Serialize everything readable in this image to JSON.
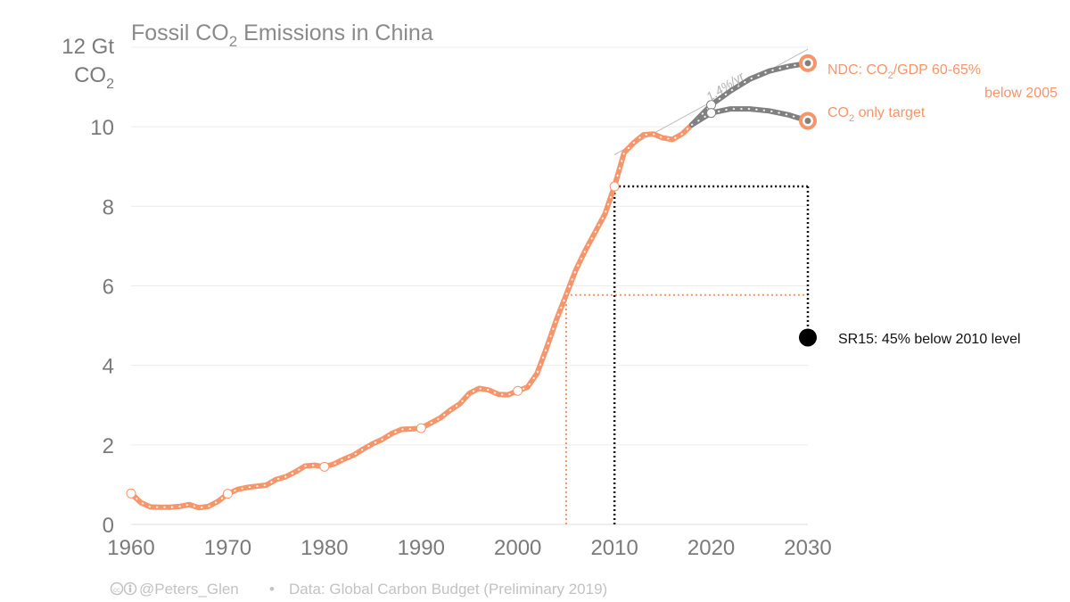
{
  "chart_data": {
    "type": "line",
    "title": "Fossil CO2 Emissions in China",
    "title_parts": {
      "pre": "Fossil CO",
      "sub": "2",
      "post": " Emissions in China"
    },
    "y_unit_line1": "12 Gt",
    "y_unit_line2": {
      "pre": "CO",
      "sub": "2"
    },
    "xlim": [
      1960,
      2030
    ],
    "ylim": [
      0,
      12
    ],
    "x_ticks": [
      1960,
      1970,
      1980,
      1990,
      2000,
      2010,
      2020,
      2030
    ],
    "y_ticks": [
      0,
      2,
      4,
      6,
      8,
      10
    ],
    "grid": true,
    "colors": {
      "historical": "#f7956a",
      "projection": "#808080",
      "sr15": "#000000",
      "text": "#7a7a7a"
    },
    "series": [
      {
        "role": "historical",
        "x": [
          1960,
          1961,
          1962,
          1963,
          1964,
          1965,
          1966,
          1967,
          1968,
          1969,
          1970,
          1971,
          1972,
          1973,
          1974,
          1975,
          1976,
          1977,
          1978,
          1979,
          1980,
          1981,
          1982,
          1983,
          1984,
          1985,
          1986,
          1987,
          1988,
          1989,
          1990,
          1991,
          1992,
          1993,
          1994,
          1995,
          1996,
          1997,
          1998,
          1999,
          2000,
          2001,
          2002,
          2003,
          2004,
          2005,
          2006,
          2007,
          2008,
          2009,
          2010,
          2011,
          2012,
          2013,
          2014,
          2015,
          2016,
          2017,
          2018
        ],
        "y": [
          0.78,
          0.55,
          0.44,
          0.43,
          0.43,
          0.45,
          0.5,
          0.42,
          0.45,
          0.58,
          0.77,
          0.88,
          0.93,
          0.96,
          0.99,
          1.13,
          1.2,
          1.32,
          1.47,
          1.49,
          1.45,
          1.52,
          1.64,
          1.74,
          1.89,
          2.03,
          2.14,
          2.29,
          2.39,
          2.4,
          2.42,
          2.55,
          2.68,
          2.87,
          3.03,
          3.3,
          3.42,
          3.38,
          3.27,
          3.26,
          3.36,
          3.45,
          3.8,
          4.45,
          5.15,
          5.77,
          6.4,
          6.9,
          7.35,
          7.8,
          8.5,
          9.35,
          9.6,
          9.8,
          9.82,
          9.72,
          9.68,
          9.82,
          10.05
        ]
      },
      {
        "role": "projection",
        "name": "NDC: CO2/GDP 60-65% below 2005",
        "x": [
          2018,
          2020,
          2022,
          2024,
          2026,
          2028,
          2030
        ],
        "y": [
          10.05,
          10.55,
          10.9,
          11.2,
          11.4,
          11.52,
          11.6
        ]
      },
      {
        "role": "projection",
        "name": "CO2 only target",
        "x": [
          2018,
          2020,
          2022,
          2024,
          2026,
          2028,
          2030
        ],
        "y": [
          10.05,
          10.35,
          10.45,
          10.45,
          10.4,
          10.3,
          10.15
        ]
      }
    ],
    "reference_lines": [
      {
        "role": "trend",
        "label": "1.4%/yr",
        "x": [
          2010,
          2030
        ],
        "y": [
          9.3,
          11.95
        ]
      },
      {
        "role": "2005-level",
        "x_drop": 2005,
        "y": 5.77,
        "x_to": 2030
      },
      {
        "role": "2010-level",
        "x_drop": 2010,
        "y": 8.5,
        "x_to": 2030,
        "y_to": 4.7
      }
    ],
    "endpoints": [
      {
        "role": "projection",
        "x": 2030,
        "y": 11.6
      },
      {
        "role": "projection",
        "x": 2030,
        "y": 10.15
      }
    ],
    "sr15_point": {
      "x": 2030,
      "y": 4.7
    },
    "annotations": {
      "ndc_line1": {
        "pre": "NDC: CO",
        "sub": "2",
        "post": "/GDP 60-65%"
      },
      "ndc_line2": "below 2005",
      "co2_only": {
        "pre": "CO",
        "sub": "2",
        "post": " only target"
      },
      "sr15": "SR15: 45% below 2010 level",
      "trend_rate": "1.4%/yr"
    }
  },
  "footer": {
    "handle": "@Peters_Glen",
    "separator": "•",
    "source": "Data: Global Carbon Budget (Preliminary 2019)",
    "license_icon": "cc-by-icon"
  }
}
